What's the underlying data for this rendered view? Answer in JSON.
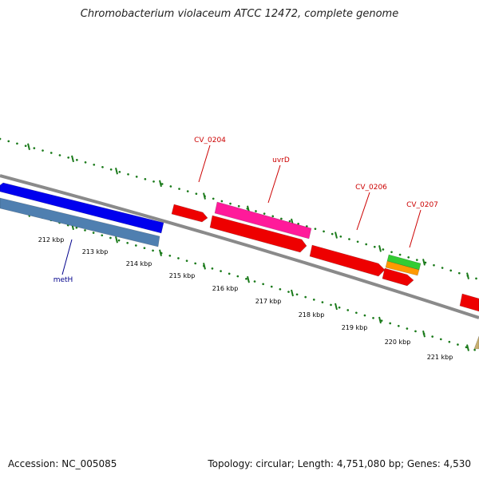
{
  "title": "Chromobacterium violaceum ATCC 12472, complete genome",
  "accession": "Accession: NC_005085",
  "summary": "Topology: circular; Length: 4,751,080 bp; Genes: 4,530",
  "colors": {
    "backbone": "#8a8a8a",
    "dots": "#1a7a1a",
    "label_red": "#cc0000",
    "label_blue": "#00008b",
    "blue": "#0000ee",
    "steel": "#4f7fb0",
    "red": "#ee0000",
    "pink": "#ff1a9a",
    "green": "#33cc33",
    "orange": "#ff9900",
    "tan": "#c8b070"
  },
  "ticks": [
    "212 kbp",
    "213 kbp",
    "214 kbp",
    "215 kbp",
    "216 kbp",
    "217 kbp",
    "218 kbp",
    "219 kbp",
    "220 kbp",
    "221 kbp"
  ],
  "labels": {
    "cv0204": "CV_0204",
    "uvrd": "uvrD",
    "cv0206": "CV_0206",
    "cv0207": "CV_0207",
    "meth": "metH"
  }
}
